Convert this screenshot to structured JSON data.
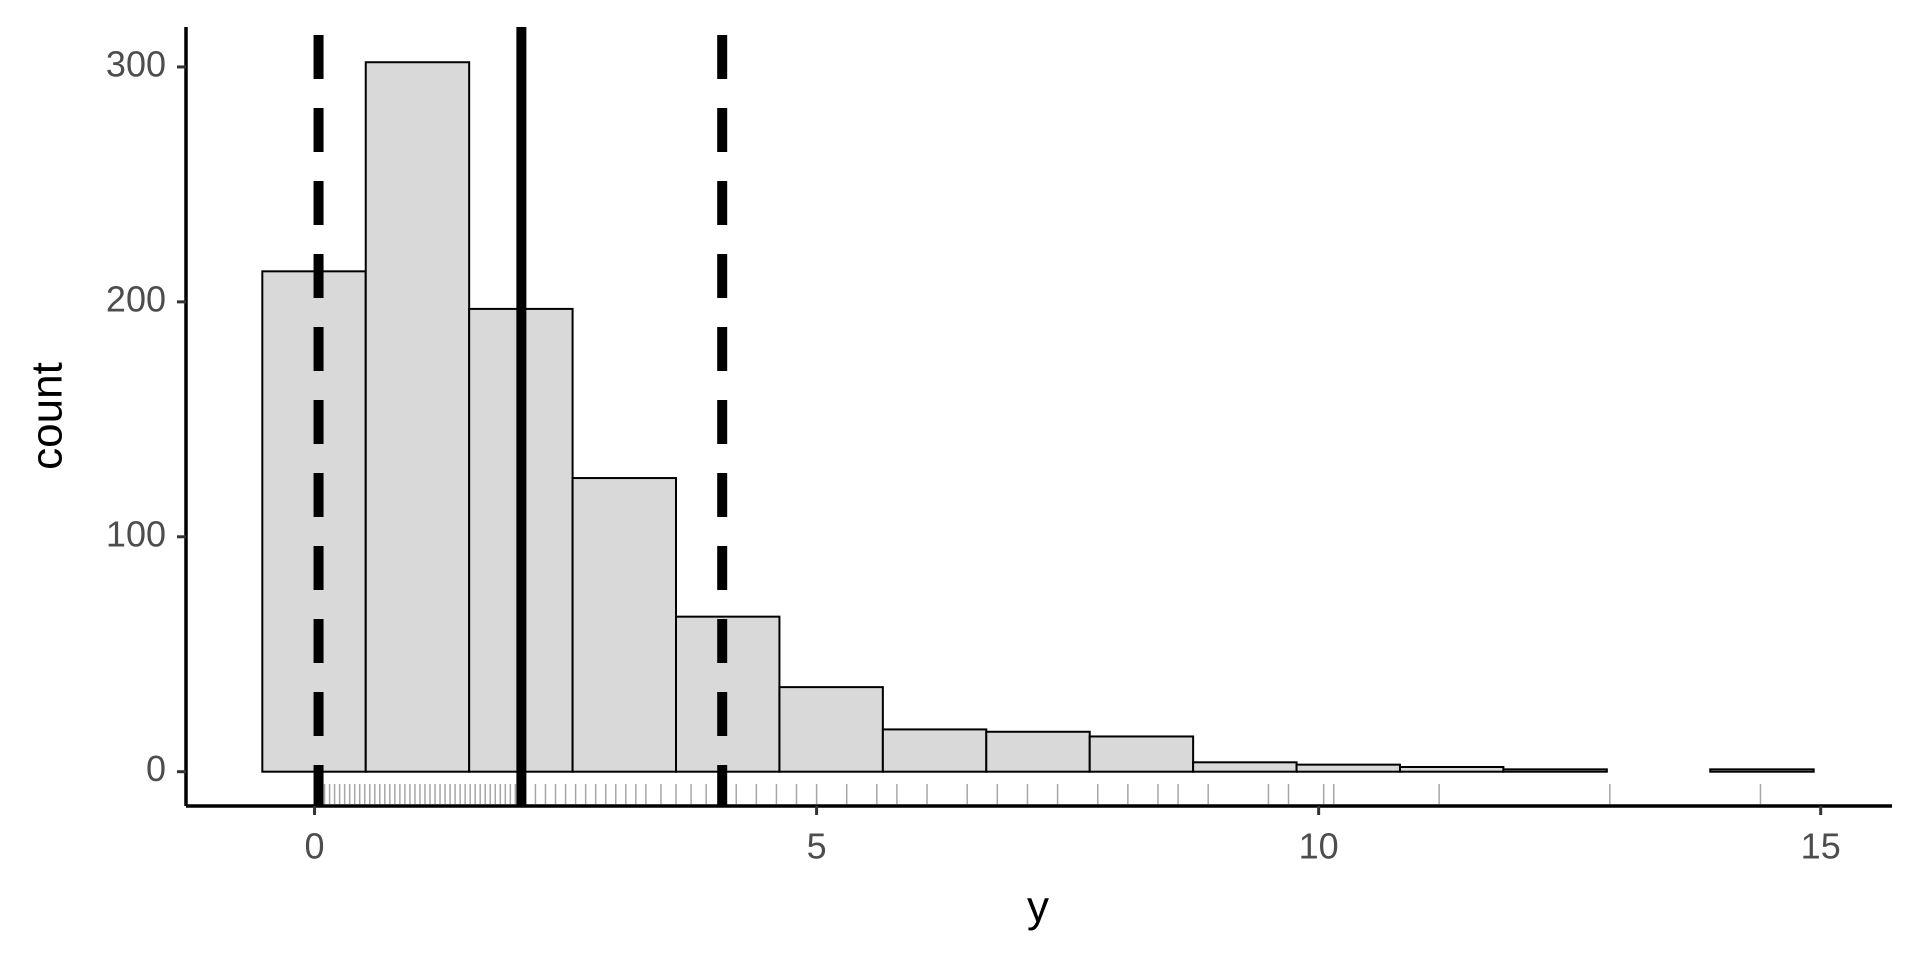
{
  "chart_data": {
    "type": "histogram",
    "xlabel": "y",
    "ylabel": "count",
    "bins": [
      -0.52,
      0.51,
      1.54,
      2.57,
      3.6,
      4.63,
      5.66,
      6.69,
      7.72,
      8.75,
      9.78,
      10.81,
      11.84,
      12.87,
      13.9,
      14.93
    ],
    "counts": [
      213,
      302,
      197,
      125,
      66,
      36,
      18,
      17,
      15,
      4,
      3,
      2,
      1,
      0,
      1
    ],
    "color": "#d9d9d9",
    "edgecolor": "#000000",
    "xlim": [
      -1.28,
      15.71
    ],
    "ylim": [
      -14.6,
      317
    ],
    "xticks": [
      0,
      5,
      10,
      15
    ],
    "yticks": [
      0,
      100,
      200,
      300
    ],
    "vlines": [
      {
        "value": 0.04,
        "style": "dashed"
      },
      {
        "value": 2.06,
        "style": "solid"
      },
      {
        "value": 4.06,
        "style": "dashed"
      }
    ],
    "rug": [
      0.02,
      0.1,
      0.15,
      0.2,
      0.25,
      0.3,
      0.35,
      0.4,
      0.45,
      0.5,
      0.55,
      0.6,
      0.65,
      0.7,
      0.75,
      0.8,
      0.85,
      0.9,
      0.95,
      1.0,
      1.05,
      1.1,
      1.15,
      1.2,
      1.25,
      1.3,
      1.35,
      1.4,
      1.45,
      1.5,
      1.55,
      1.6,
      1.65,
      1.7,
      1.75,
      1.8,
      1.85,
      1.9,
      1.95,
      2.0,
      2.1,
      2.2,
      2.3,
      2.4,
      2.5,
      2.6,
      2.7,
      2.8,
      2.9,
      3.0,
      3.1,
      3.2,
      3.3,
      3.45,
      3.6,
      3.75,
      3.9,
      4.05,
      4.2,
      4.4,
      4.6,
      4.8,
      5.0,
      5.3,
      5.6,
      5.8,
      6.1,
      6.5,
      6.8,
      7.1,
      7.4,
      7.8,
      8.1,
      8.4,
      8.6,
      8.9,
      9.5,
      9.7,
      10.05,
      10.15,
      11.2,
      12.9,
      14.4
    ]
  }
}
